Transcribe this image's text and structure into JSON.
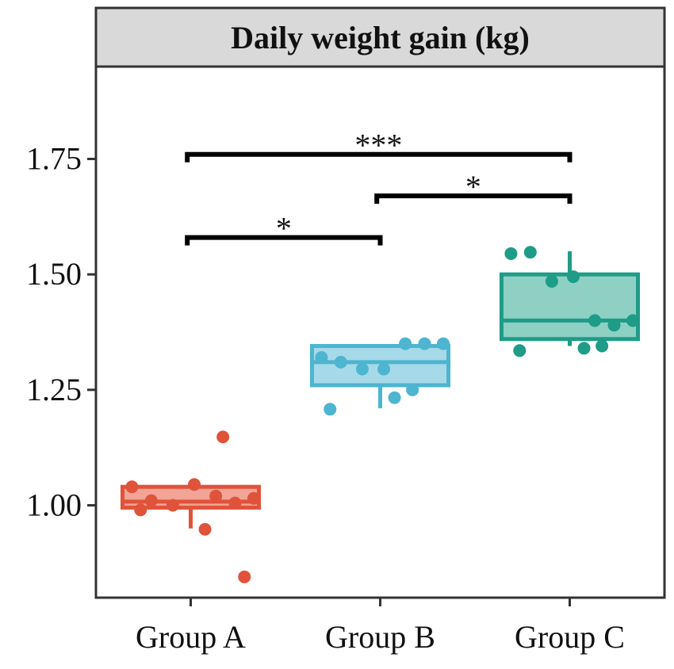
{
  "chart_data": {
    "type": "boxplot",
    "title": "Daily weight gain (kg)",
    "xlabel": "",
    "ylabel": "",
    "ylim": [
      0.8,
      1.95
    ],
    "yticks": [
      1.0,
      1.25,
      1.5,
      1.75
    ],
    "ytick_labels": [
      "1.00",
      "1.25",
      "1.50",
      "1.75"
    ],
    "categories": [
      "Group A",
      "Group B",
      "Group C"
    ],
    "colors": [
      "#E0533B",
      "#4DB5D0",
      "#1E9C88"
    ],
    "fill_colors": [
      "#F2A496",
      "#A6DAE8",
      "#8FD0C4"
    ],
    "series": [
      {
        "name": "Group A",
        "whisker_low": 0.95,
        "q1": 0.995,
        "median": 1.008,
        "q3": 1.04,
        "whisker_high": 1.05,
        "points": [
          1.04,
          1.01,
          1.0,
          1.045,
          1.02,
          1.005,
          1.015,
          1.148,
          0.99,
          0.948,
          0.845
        ]
      },
      {
        "name": "Group B",
        "whisker_low": 1.21,
        "q1": 1.26,
        "median": 1.31,
        "q3": 1.345,
        "whisker_high": 1.345,
        "points": [
          1.32,
          1.31,
          1.295,
          1.295,
          1.35,
          1.35,
          1.35,
          1.25,
          1.208,
          1.233
        ]
      },
      {
        "name": "Group C",
        "whisker_low": 1.345,
        "q1": 1.36,
        "median": 1.4,
        "q3": 1.5,
        "whisker_high": 1.55,
        "points": [
          1.545,
          1.548,
          1.485,
          1.495,
          1.4,
          1.39,
          1.4,
          1.345,
          1.335,
          1.34
        ]
      }
    ],
    "significance": [
      {
        "from": "Group A",
        "to": "Group B",
        "y": 1.58,
        "label": "*"
      },
      {
        "from": "Group B",
        "to": "Group C",
        "y": 1.67,
        "label": "*"
      },
      {
        "from": "Group A",
        "to": "Group C",
        "y": 1.76,
        "label": "***"
      }
    ]
  }
}
